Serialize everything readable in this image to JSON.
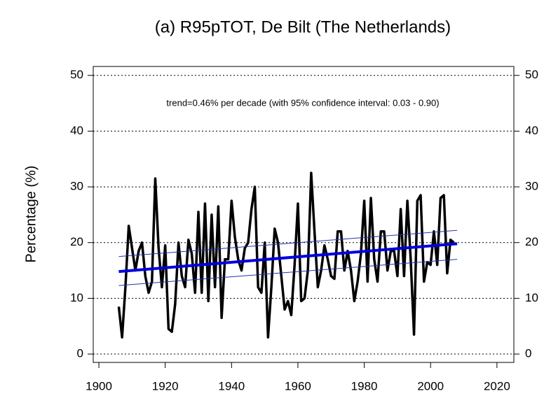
{
  "chart_data": {
    "type": "line",
    "title": "(a) R95pTOT, De Bilt (The Netherlands)",
    "y_label": "Percentage (%)",
    "annotation": "trend=0.46% per decade (with 95% confidence interval: 0.03 - 0.90)",
    "xlim": [
      1898.3,
      2025.1
    ],
    "xticks": [
      1900,
      1920,
      1940,
      1960,
      1980,
      2000,
      2020
    ],
    "ylim": [
      -1.5,
      51.6
    ],
    "yticks": [
      0,
      10,
      20,
      30,
      40,
      50
    ],
    "y2lim": [
      -1.5,
      51.6
    ],
    "y2ticks": [
      0,
      10,
      20,
      30,
      40,
      50
    ],
    "grid": true,
    "series": [
      {
        "color": "#000000",
        "width": 3.5,
        "x": [
          1906,
          1907,
          1908,
          1909,
          1910,
          1911,
          1912,
          1913,
          1914,
          1915,
          1916,
          1917,
          1918,
          1919,
          1920,
          1921,
          1922,
          1923,
          1924,
          1925,
          1926,
          1927,
          1928,
          1929,
          1930,
          1931,
          1932,
          1933,
          1934,
          1935,
          1936,
          1937,
          1938,
          1939,
          1940,
          1941,
          1942,
          1943,
          1944,
          1945,
          1946,
          1947,
          1948,
          1949,
          1950,
          1951,
          1952,
          1953,
          1954,
          1955,
          1956,
          1957,
          1958,
          1959,
          1960,
          1961,
          1962,
          1963,
          1964,
          1965,
          1966,
          1967,
          1968,
          1969,
          1970,
          1971,
          1972,
          1973,
          1974,
          1975,
          1976,
          1977,
          1978,
          1979,
          1980,
          1981,
          1982,
          1983,
          1984,
          1985,
          1986,
          1987,
          1988,
          1989,
          1990,
          1991,
          1992,
          1993,
          1994,
          1995,
          1996,
          1997,
          1998,
          1999,
          2000,
          2001,
          2002,
          2003,
          2004,
          2005,
          2006,
          2007
        ],
        "values": [
          8.5,
          3,
          12,
          23,
          19,
          15,
          18.5,
          20,
          14,
          11,
          13,
          31.5,
          19,
          12,
          19.5,
          4.5,
          4,
          9,
          20,
          14,
          12,
          20.5,
          18,
          11,
          25.5,
          11,
          27,
          9.5,
          25,
          12,
          26.5,
          6.5,
          17,
          17,
          27.5,
          21,
          17,
          15,
          19,
          20,
          26,
          30,
          12,
          11,
          20,
          3,
          12,
          22.5,
          20,
          14,
          8,
          9.5,
          7,
          16,
          27,
          9.5,
          10,
          15,
          32.5,
          22,
          12,
          15,
          19.5,
          17,
          14,
          13.5,
          22,
          22,
          15,
          18.5,
          15,
          9.5,
          13,
          18,
          27.5,
          13,
          28,
          17,
          13,
          22,
          22,
          15,
          18.5,
          18.5,
          14,
          26,
          14,
          27.5,
          17,
          3.5,
          27.5,
          28.5,
          13,
          16.5,
          16,
          22,
          16,
          28,
          28.5,
          14.5,
          20.5,
          20
        ]
      },
      {
        "color": "#0000dd",
        "width": 4,
        "x": [
          1906,
          2008
        ],
        "values": [
          14.8,
          19.8
        ]
      },
      {
        "color": "#2233aa",
        "width": 1,
        "x": [
          1906,
          2008
        ],
        "values": [
          17.5,
          22.2
        ]
      },
      {
        "color": "#2233aa",
        "width": 1,
        "x": [
          1906,
          2008
        ],
        "values": [
          12.3,
          17
        ]
      }
    ]
  }
}
